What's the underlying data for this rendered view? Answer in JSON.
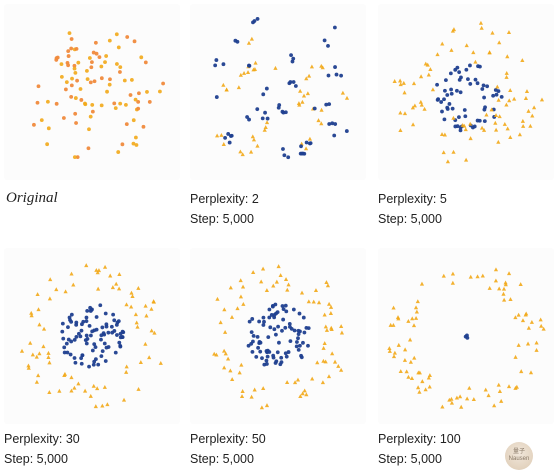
{
  "colors": {
    "outer": "#f2a818",
    "inner": "#1f3f8f",
    "original_hue": "#f08a3c"
  },
  "watermark": {
    "line1": "量子",
    "line2": "Nausen"
  },
  "panels": [
    {
      "id": "orig",
      "caption_title": "Original",
      "caption_step": ""
    },
    {
      "id": "p2",
      "caption_title": "Perplexity: 2",
      "caption_step": "Step: 5,000"
    },
    {
      "id": "p5",
      "caption_title": "Perplexity: 5",
      "caption_step": "Step: 5,000"
    },
    {
      "id": "p30",
      "caption_title": "Perplexity: 30",
      "caption_step": "Step: 5,000"
    },
    {
      "id": "p50",
      "caption_title": "Perplexity: 50",
      "caption_step": "Step: 5,000"
    },
    {
      "id": "p100",
      "caption_title": "Perplexity: 100",
      "caption_step": "Step: 5,000"
    }
  ],
  "chart_data": [
    {
      "type": "scatter",
      "title": "Original",
      "layout": "interleaved-ring",
      "series": [
        {
          "color": "#f2a818",
          "count": 50
        },
        {
          "color": "#f08a3c",
          "count": 50
        }
      ]
    },
    {
      "type": "scatter",
      "title": "Perplexity: 2",
      "layout": "pair-clusters",
      "series": [
        {
          "color": "#f2a818",
          "count": 60
        },
        {
          "color": "#1f3f8f",
          "count": 60
        }
      ]
    },
    {
      "type": "scatter",
      "title": "Perplexity: 5",
      "layout": "inner-core-outer-scatter",
      "series": [
        {
          "color": "#f2a818",
          "count": 80
        },
        {
          "color": "#1f3f8f",
          "count": 60
        }
      ]
    },
    {
      "type": "scatter",
      "title": "Perplexity: 30",
      "layout": "inner-disc-outer-ring",
      "series": [
        {
          "color": "#f2a818",
          "count": 75
        },
        {
          "color": "#1f3f8f",
          "count": 90
        }
      ]
    },
    {
      "type": "scatter",
      "title": "Perplexity: 50",
      "layout": "inner-disc-outer-ring",
      "series": [
        {
          "color": "#f2a818",
          "count": 75
        },
        {
          "color": "#1f3f8f",
          "count": 85
        }
      ]
    },
    {
      "type": "scatter",
      "title": "Perplexity: 100",
      "layout": "collapsed-core-wide-ring",
      "series": [
        {
          "color": "#f2a818",
          "count": 90
        },
        {
          "color": "#1f3f8f",
          "count": 3
        }
      ]
    }
  ]
}
